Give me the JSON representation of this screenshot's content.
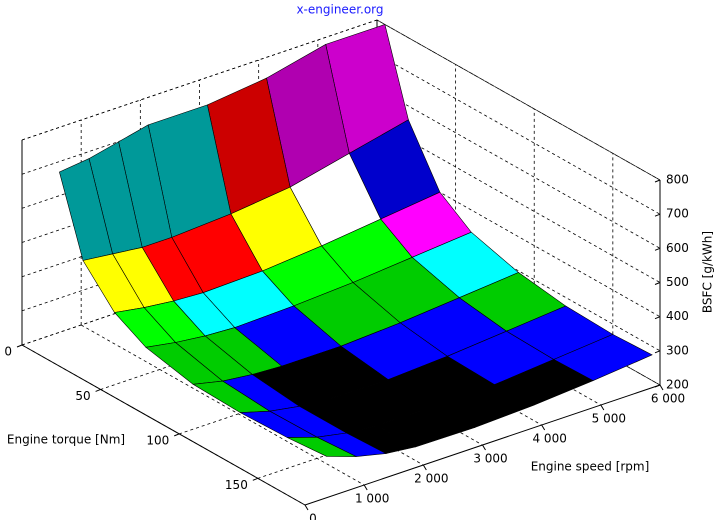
{
  "chart_data": {
    "type": "surface",
    "title": "x-engineer.org",
    "x_label": "Engine speed [rpm]",
    "y_label": "Engine torque [Nm]",
    "z_label": "BSFC [g/kWh]",
    "x": [
      500,
      1000,
      1500,
      2000,
      3000,
      4000,
      5000,
      6000
    ],
    "y": [
      5,
      20,
      40,
      60,
      90,
      120,
      150,
      175
    ],
    "z": [
      [
        690,
        700,
        720,
        740,
        740,
        760,
        800,
        800
      ],
      [
        470,
        460,
        450,
        450,
        460,
        480,
        520,
        560
      ],
      [
        370,
        355,
        345,
        340,
        345,
        360,
        380,
        400
      ],
      [
        320,
        305,
        295,
        290,
        295,
        305,
        320,
        335
      ],
      [
        290,
        270,
        260,
        255,
        255,
        265,
        280,
        295
      ],
      [
        285,
        260,
        245,
        238,
        235,
        245,
        260,
        275
      ],
      [
        290,
        262,
        245,
        237,
        235,
        240,
        255,
        270
      ],
      [
        300,
        270,
        250,
        240,
        238,
        245,
        258,
        275
      ]
    ],
    "xlim": [
      0,
      6000
    ],
    "ylim": [
      0,
      180
    ],
    "zlim": [
      200,
      800
    ],
    "xticks": [
      0,
      {
        "value": 1000,
        "label": "1 000"
      },
      {
        "value": 2000,
        "label": "2 000"
      },
      {
        "value": 3000,
        "label": "3 000"
      },
      {
        "value": 4000,
        "label": "4 000"
      },
      {
        "value": 5000,
        "label": "5 000"
      },
      {
        "value": 6000,
        "label": "6 000"
      }
    ],
    "yticks": [
      0,
      50,
      100,
      150
    ],
    "zticks": [
      200,
      300,
      400,
      500,
      600,
      700,
      800
    ],
    "grid": true,
    "colormap": [
      "#000000",
      "#000000",
      "#0000ff",
      "#00cc00",
      "#00ffff",
      "#00ff00",
      "#ff00ff",
      "#ff0000",
      "#ffff00",
      "#ffffff",
      "#0000cc",
      "#001a80",
      "#99ccff",
      "#33cc33",
      "#00e0e0",
      "#009999",
      "#cc0000",
      "#b000b0",
      "#cc00cc",
      "#ff3333",
      "#ffccdd",
      "#996633",
      "#ffff33",
      "#ffffff"
    ],
    "title_color": "#1a1aff"
  }
}
